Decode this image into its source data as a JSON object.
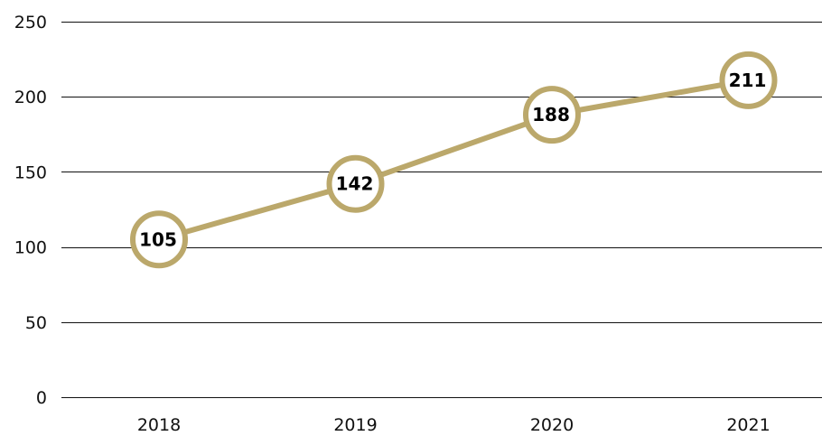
{
  "chart_data": {
    "type": "line",
    "categories": [
      "2018",
      "2019",
      "2020",
      "2021"
    ],
    "series": [
      {
        "values": [
          105,
          142,
          188,
          211
        ]
      }
    ],
    "data_labels": [
      "105",
      "142",
      "188",
      "211"
    ],
    "y_ticks": [
      "0",
      "50",
      "100",
      "150",
      "200",
      "250"
    ],
    "ylim": [
      0,
      250
    ],
    "grid": true,
    "legend": "none",
    "colors": {
      "line": "#BBA86B",
      "marker_fill": "#FFFFFF",
      "grid": "#111111",
      "text": "#111111"
    }
  }
}
